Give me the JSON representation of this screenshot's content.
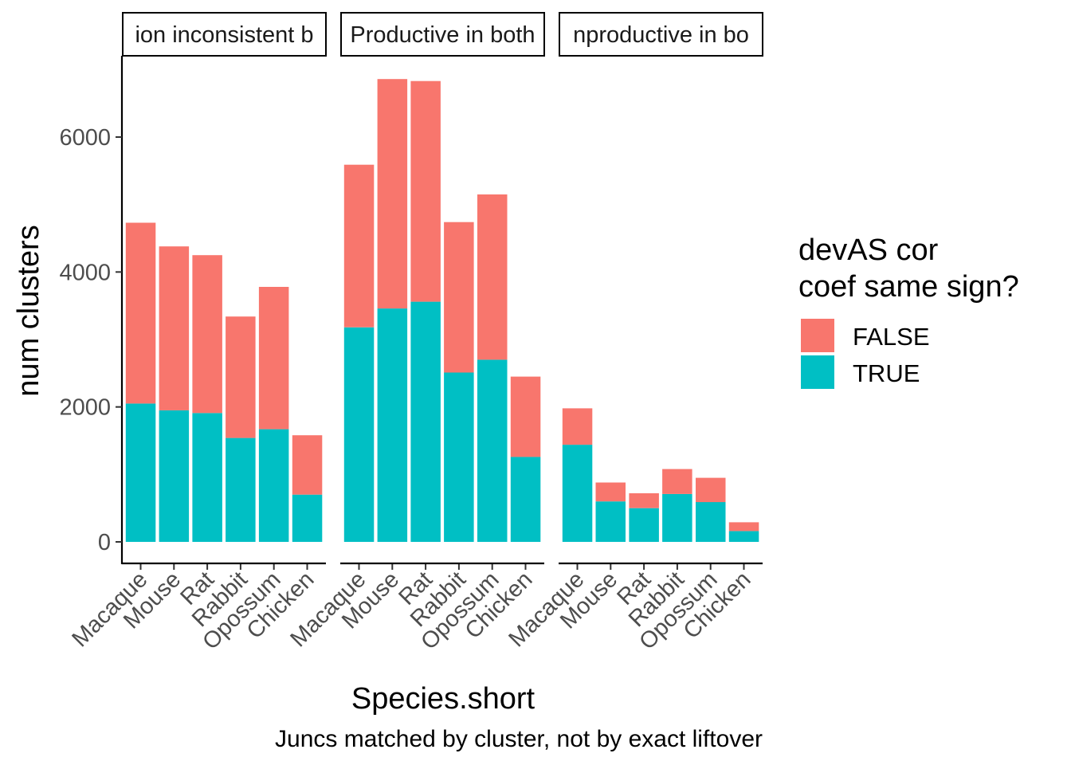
{
  "chart_data": {
    "type": "bar",
    "stacked": true,
    "facet_labels": [
      "ion inconsistent b",
      "Productive in both",
      "nproductive in bo"
    ],
    "categories": [
      "Macaque",
      "Mouse",
      "Rat",
      "Rabbit",
      "Opossum",
      "Chicken"
    ],
    "xlabel": "Species.short",
    "ylabel": "num clusters",
    "caption": "Juncs matched by cluster, not by exact liftover",
    "ylim": [
      0,
      7000
    ],
    "yticks": [
      "0",
      "2000",
      "4000",
      "6000"
    ],
    "legend": {
      "title_line1": "devAS cor",
      "title_line2": "coef same sign?",
      "entries": [
        "FALSE",
        "TRUE"
      ],
      "placement": "right"
    },
    "colors": {
      "FALSE": "#F8766D",
      "TRUE": "#00BFC4"
    },
    "grid": false,
    "facets": [
      {
        "label": "ion inconsistent b",
        "series": [
          {
            "name": "TRUE",
            "values": [
              2050,
              1950,
              1910,
              1540,
              1670,
              700
            ]
          },
          {
            "name": "FALSE",
            "values": [
              2680,
              2430,
              2340,
              1800,
              2110,
              880
            ]
          }
        ]
      },
      {
        "label": "Productive in both",
        "series": [
          {
            "name": "TRUE",
            "values": [
              3180,
              3460,
              3560,
              2510,
              2700,
              1260
            ]
          },
          {
            "name": "FALSE",
            "values": [
              2410,
              3400,
              3270,
              2230,
              2450,
              1190
            ]
          }
        ]
      },
      {
        "label": "nproductive in bo",
        "series": [
          {
            "name": "TRUE",
            "values": [
              1440,
              600,
              500,
              710,
              590,
              160
            ]
          },
          {
            "name": "FALSE",
            "values": [
              540,
              280,
              220,
              370,
              360,
              130
            ]
          }
        ]
      }
    ]
  }
}
